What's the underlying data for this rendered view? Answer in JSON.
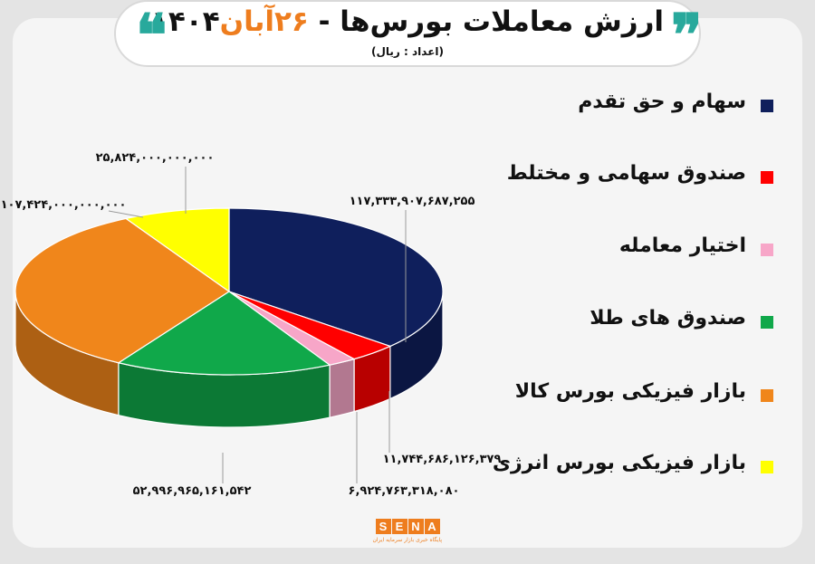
{
  "header": {
    "title_main": "ارزش معاملات بورس‌ها  - ",
    "title_date": "۲۶آبان",
    "title_year": "۱۴۰۴",
    "subtitle": "(اعداد : ریال)",
    "quote_open": "❞",
    "quote_close": "❝"
  },
  "chart_data": {
    "type": "pie",
    "categories": [
      "سهام و حق تقدم",
      "صندوق سهامی و مختلط",
      "اختیار معامله",
      "صندوق های طلا",
      "بازار فیزیکی بورس کالا",
      "بازار فیزیکی بورس انرژی"
    ],
    "values": [
      117333907687255,
      11744686126379,
      6924763318080,
      52996965161542,
      107424000000000,
      25824000000000
    ],
    "value_labels": [
      "۱۱۷,۳۳۳,۹۰۷,۶۸۷,۲۵۵",
      "۱۱,۷۴۴,۶۸۶,۱۲۶,۳۷۹",
      "۶,۹۲۴,۷۶۳,۳۱۸,۰۸۰",
      "۵۲,۹۹۶,۹۶۵,۱۶۱,۵۴۲",
      "۱۰۷,۴۲۴,۰۰۰,۰۰۰,۰۰۰",
      "۲۵,۸۲۴,۰۰۰,۰۰۰,۰۰۰"
    ],
    "colors": [
      "#0f1f5c",
      "#ff0000",
      "#f7a6c8",
      "#10a84a",
      "#f0861b",
      "#ffff00"
    ],
    "legend_position": "right"
  },
  "footer": {
    "logo_letters": [
      "S",
      "E",
      "N",
      "A"
    ],
    "logo_caption": "پایگاه خبری بازار سرمایه ایران"
  }
}
